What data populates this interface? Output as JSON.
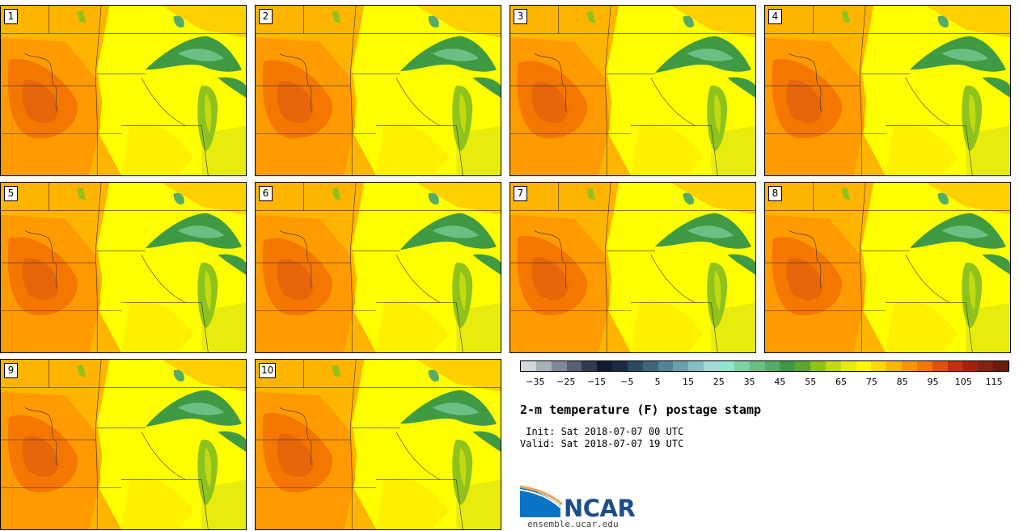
{
  "title": "2-m temperature (F) postage stamp",
  "init_label": " Init: Sat 2018-07-07 00 UTC",
  "valid_label": "Valid: Sat 2018-07-07 19 UTC",
  "logo_text": "NCAR",
  "url": "ensemble.ucar.edu",
  "members": [
    "1",
    "2",
    "3",
    "4",
    "5",
    "6",
    "7",
    "8",
    "9",
    "10"
  ],
  "colorbar": {
    "colors": [
      "#d2d7de",
      "#a8b0ba",
      "#7e8898",
      "#565f72",
      "#2f3a50",
      "#101a30",
      "#1c2a40",
      "#2b4a5e",
      "#3e6678",
      "#508396",
      "#69a1ae",
      "#85bec3",
      "#a2dbd6",
      "#8fe6cf",
      "#7dd3a3",
      "#6cbf84",
      "#55ab67",
      "#3f9a43",
      "#5ca62b",
      "#8fc31c",
      "#c2da12",
      "#e8ec0c",
      "#fff600",
      "#ffd800",
      "#ffb400",
      "#ff9400",
      "#f57700",
      "#e0520a",
      "#c3300c",
      "#a6200e",
      "#862010",
      "#6b1a0c"
    ],
    "tick_labels": [
      "−35",
      "−25",
      "−15",
      "−5",
      "5",
      "15",
      "25",
      "35",
      "45",
      "55",
      "65",
      "75",
      "85",
      "95",
      "105",
      "115"
    ],
    "range": [
      -40,
      120
    ],
    "units": "F"
  }
}
